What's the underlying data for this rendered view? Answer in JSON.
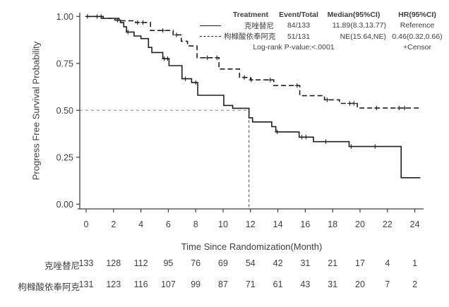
{
  "y_axis": {
    "title": "Progress Free Survival Probability",
    "tick_labels": [
      "0.00",
      "0.25",
      "0.50",
      "0.75",
      "1.00"
    ]
  },
  "x_axis": {
    "title": "Time Since Randomization(Month)",
    "tick_labels": [
      "0",
      "2",
      "4",
      "6",
      "8",
      "10",
      "12",
      "14",
      "16",
      "18",
      "20",
      "22",
      "24"
    ]
  },
  "legend": {
    "headers": [
      "Treatment",
      "Event/Total",
      "Median(95%CI)",
      "HR(95%CI)"
    ],
    "rows": [
      {
        "treatment": "克唑替尼",
        "line_style": "solid",
        "event_total": "84/133",
        "median": "11.89(8.3,13.77)",
        "hr": "Reference"
      },
      {
        "treatment": "枸橼酸依奉阿克",
        "line_style": "dashed",
        "event_total": "51/131",
        "median": "NE(15.64,NE)",
        "hr": "0.46(0.32,0.66)"
      }
    ],
    "logrank_label": "Log-rank P-value:<.0001",
    "censor_note": "+Censor"
  },
  "chart_data": {
    "type": "line",
    "subtype": "kaplan_meier_step",
    "xlabel": "Time Since Randomization(Month)",
    "ylabel": "Progress Free Survival Probability",
    "xlim": [
      0,
      24.5
    ],
    "ylim": [
      0,
      1
    ],
    "x_ticks": [
      0,
      2,
      4,
      6,
      8,
      10,
      12,
      14,
      16,
      18,
      20,
      22,
      24
    ],
    "y_ticks": [
      0,
      0.25,
      0.5,
      0.75,
      1.0
    ],
    "grid": false,
    "legend_position": "top-right",
    "series": [
      {
        "name": "克唑替尼",
        "style": "solid",
        "event_total": "84/133",
        "median_months": 11.89,
        "steps": [
          [
            0,
            1.0
          ],
          [
            1.25,
            0.99
          ],
          [
            2.1,
            0.98
          ],
          [
            2.5,
            0.967
          ],
          [
            2.75,
            0.945
          ],
          [
            2.95,
            0.917
          ],
          [
            3.5,
            0.896
          ],
          [
            4.0,
            0.882
          ],
          [
            4.55,
            0.835
          ],
          [
            4.8,
            0.808
          ],
          [
            5.6,
            0.775
          ],
          [
            6.05,
            0.738
          ],
          [
            7.0,
            0.668
          ],
          [
            7.7,
            0.648
          ],
          [
            8.15,
            0.58
          ],
          [
            10.05,
            0.526
          ],
          [
            10.7,
            0.511
          ],
          [
            11.89,
            0.46
          ],
          [
            12.15,
            0.438
          ],
          [
            13.55,
            0.413
          ],
          [
            13.85,
            0.385
          ],
          [
            15.55,
            0.357
          ],
          [
            16.6,
            0.333
          ],
          [
            19.2,
            0.307
          ],
          [
            23.0,
            0.141
          ],
          [
            24.4,
            0.141
          ]
        ],
        "censors": [
          [
            0.1,
            1.0
          ],
          [
            0.8,
            1.0
          ],
          [
            1.1,
            1.0
          ],
          [
            2.3,
            0.98
          ],
          [
            3.05,
            0.917
          ],
          [
            5.7,
            0.775
          ],
          [
            5.95,
            0.775
          ],
          [
            7.25,
            0.668
          ],
          [
            8.0,
            0.648
          ],
          [
            13.95,
            0.385
          ],
          [
            15.75,
            0.357
          ],
          [
            16.05,
            0.357
          ],
          [
            17.5,
            0.333
          ],
          [
            19.35,
            0.307
          ],
          [
            21.1,
            0.307
          ]
        ]
      },
      {
        "name": "枸橼酸依奉阿克",
        "style": "dashed",
        "event_total": "51/131",
        "median_months": null,
        "steps": [
          [
            0,
            1.0
          ],
          [
            1.1,
            0.99
          ],
          [
            2.4,
            0.977
          ],
          [
            3.6,
            0.968
          ],
          [
            4.7,
            0.925
          ],
          [
            6.35,
            0.902
          ],
          [
            6.95,
            0.868
          ],
          [
            7.4,
            0.843
          ],
          [
            8.1,
            0.78
          ],
          [
            9.7,
            0.72
          ],
          [
            11.2,
            0.675
          ],
          [
            12.0,
            0.662
          ],
          [
            13.7,
            0.632
          ],
          [
            15.6,
            0.578
          ],
          [
            17.4,
            0.556
          ],
          [
            18.5,
            0.537
          ],
          [
            19.8,
            0.512
          ],
          [
            24.45,
            0.512
          ]
        ],
        "censors": [
          [
            3.75,
            0.968
          ],
          [
            4.15,
            0.968
          ],
          [
            5.6,
            0.925
          ],
          [
            6.6,
            0.902
          ],
          [
            8.85,
            0.78
          ],
          [
            9.55,
            0.78
          ],
          [
            11.55,
            0.675
          ],
          [
            12.05,
            0.662
          ],
          [
            13.45,
            0.662
          ],
          [
            15.4,
            0.632
          ],
          [
            17.6,
            0.556
          ],
          [
            19.25,
            0.537
          ],
          [
            19.55,
            0.537
          ],
          [
            21.2,
            0.512
          ],
          [
            22.85,
            0.512
          ],
          [
            23.25,
            0.512
          ]
        ]
      }
    ],
    "reference_lines": [
      {
        "orientation": "horizontal",
        "y": 0.5,
        "x_from": 0,
        "x_to": 11.89,
        "style": "dashed",
        "color": "#a8a8a8"
      },
      {
        "orientation": "vertical",
        "x": 11.89,
        "y_from": 0,
        "y_to": 0.5,
        "style": "dashed",
        "color": "#4a4a4a"
      }
    ]
  },
  "risk_table": {
    "time_points": [
      0,
      2,
      4,
      6,
      8,
      10,
      12,
      14,
      16,
      18,
      20,
      22,
      24
    ],
    "rows": [
      {
        "label": "克唑替尼",
        "counts": [
          133,
          128,
          112,
          95,
          76,
          69,
          54,
          42,
          31,
          21,
          17,
          4,
          1
        ]
      },
      {
        "label": "枸橼酸依奉阿克",
        "counts": [
          131,
          123,
          116,
          107,
          99,
          87,
          71,
          61,
          43,
          31,
          20,
          7,
          2
        ]
      }
    ]
  },
  "colors": {
    "curve": "#1f1f1f",
    "axis": "#3f3f3f",
    "text": "#3f3f3f",
    "ref_line_gray": "#a8a8a8",
    "ref_line_dark": "#4a4a4a",
    "background": "#ffffff"
  }
}
